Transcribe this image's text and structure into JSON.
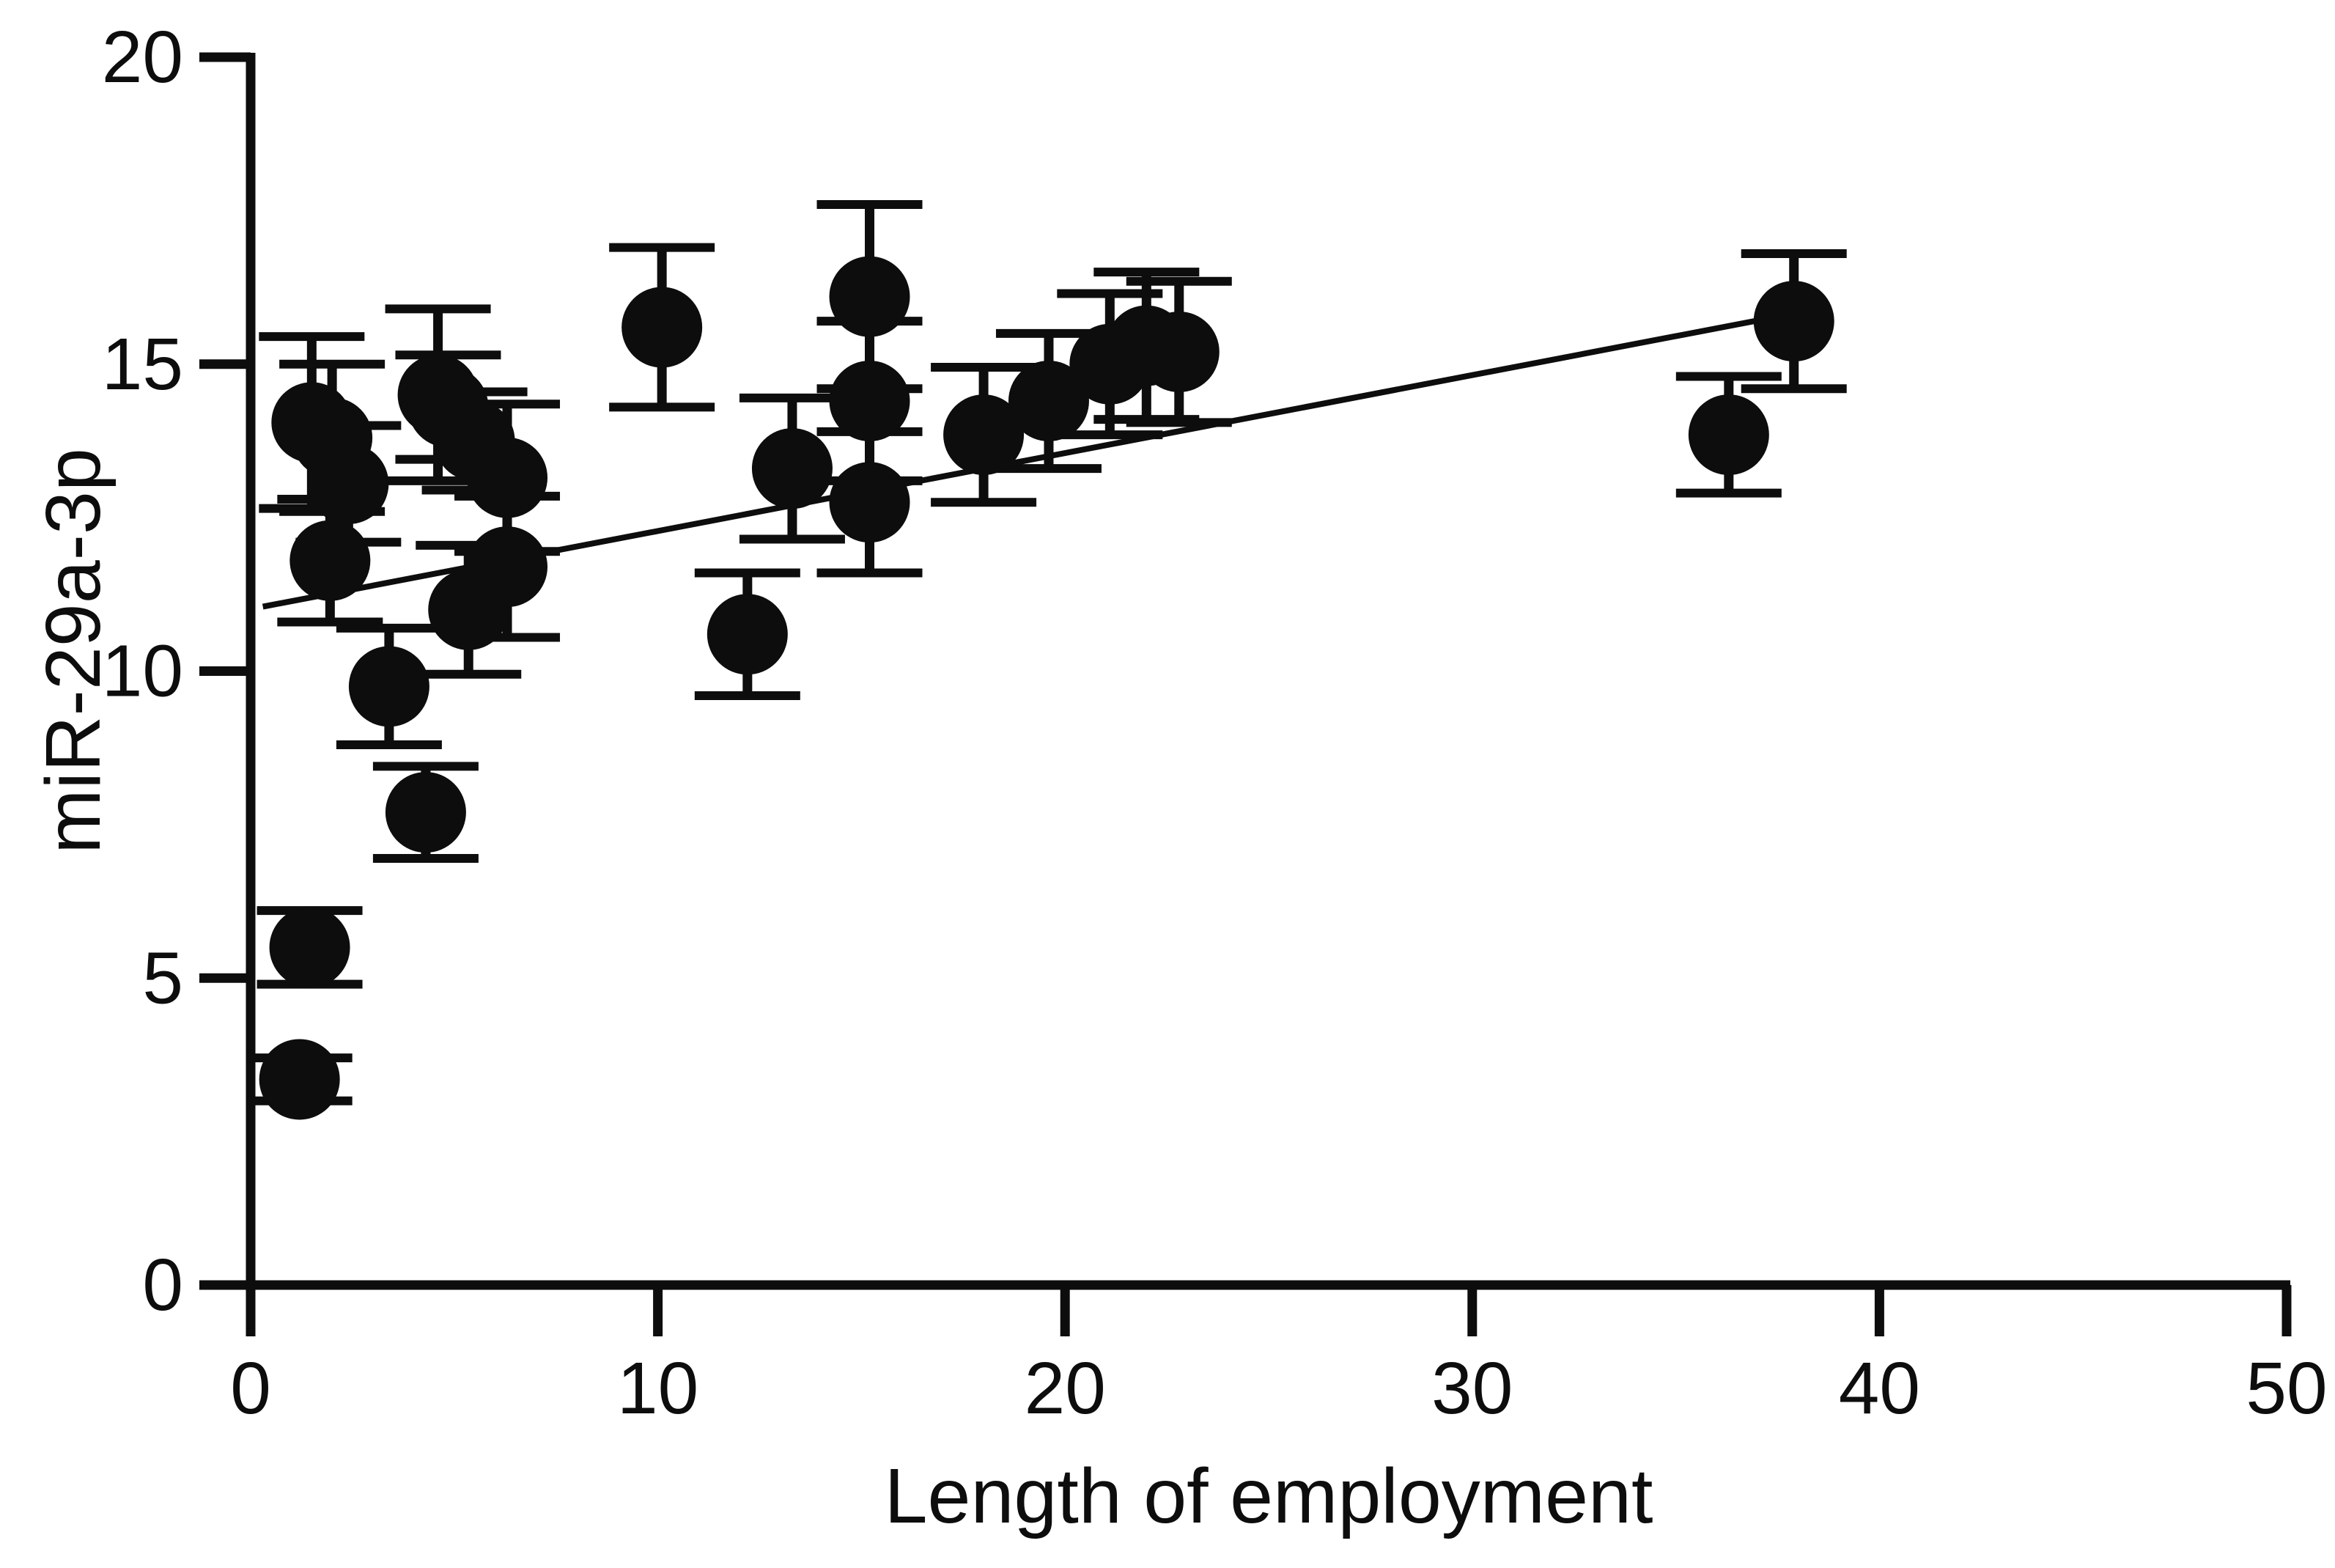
{
  "figure": {
    "background_color": "#ffffff",
    "ink_color": "#0d0d0d"
  },
  "chart_data": {
    "type": "scatter",
    "title": "",
    "xlabel": "Length of employment",
    "ylabel": "miR-29a-3p",
    "xlim": [
      0,
      50
    ],
    "ylim": [
      0,
      20
    ],
    "x_ticks": [
      0,
      10,
      20,
      30,
      40,
      50
    ],
    "y_ticks": [
      0,
      5,
      10,
      15,
      20
    ],
    "grid": false,
    "legend": false,
    "marker": "filled-circle",
    "error_bars": "vertical-with-caps",
    "points": [
      {
        "x": 1.2,
        "y": 3.35,
        "err": 0.35
      },
      {
        "x": 1.45,
        "y": 5.5,
        "err": 0.6
      },
      {
        "x": 1.5,
        "y": 14.05,
        "err": 1.4
      },
      {
        "x": 2.0,
        "y": 13.8,
        "err": 1.2
      },
      {
        "x": 1.95,
        "y": 11.8,
        "err": 1.0
      },
      {
        "x": 2.4,
        "y": 13.05,
        "err": 0.95
      },
      {
        "x": 3.4,
        "y": 9.75,
        "err": 0.95
      },
      {
        "x": 4.3,
        "y": 7.7,
        "err": 0.75
      },
      {
        "x": 4.6,
        "y": 14.5,
        "err": 1.4
      },
      {
        "x": 4.85,
        "y": 14.3,
        "err": 0.85
      },
      {
        "x": 5.5,
        "y": 13.75,
        "err": 0.8
      },
      {
        "x": 5.35,
        "y": 11.0,
        "err": 1.05
      },
      {
        "x": 6.3,
        "y": 13.15,
        "err": 1.2
      },
      {
        "x": 6.3,
        "y": 11.7,
        "err": 1.15
      },
      {
        "x": 10.1,
        "y": 15.6,
        "err": 1.3
      },
      {
        "x": 12.2,
        "y": 10.6,
        "err": 1.0
      },
      {
        "x": 13.3,
        "y": 13.3,
        "err": 1.15
      },
      {
        "x": 15.2,
        "y": 16.1,
        "err": 1.5
      },
      {
        "x": 15.2,
        "y": 14.4,
        "err": 1.3
      },
      {
        "x": 15.2,
        "y": 12.75,
        "err": 1.15
      },
      {
        "x": 18.0,
        "y": 13.85,
        "err": 1.1
      },
      {
        "x": 19.6,
        "y": 14.4,
        "err": 1.1
      },
      {
        "x": 21.1,
        "y": 15.0,
        "err": 1.15
      },
      {
        "x": 22.0,
        "y": 15.3,
        "err": 1.2
      },
      {
        "x": 22.8,
        "y": 15.2,
        "err": 1.15
      },
      {
        "x": 36.3,
        "y": 13.85,
        "err": 0.95
      },
      {
        "x": 37.9,
        "y": 15.7,
        "err": 1.1
      }
    ],
    "trend_line": {
      "x1": 0.3,
      "y1": 11.05,
      "x2": 38.1,
      "y2": 15.85,
      "slope": 0.126,
      "intercept": 11.0
    }
  }
}
